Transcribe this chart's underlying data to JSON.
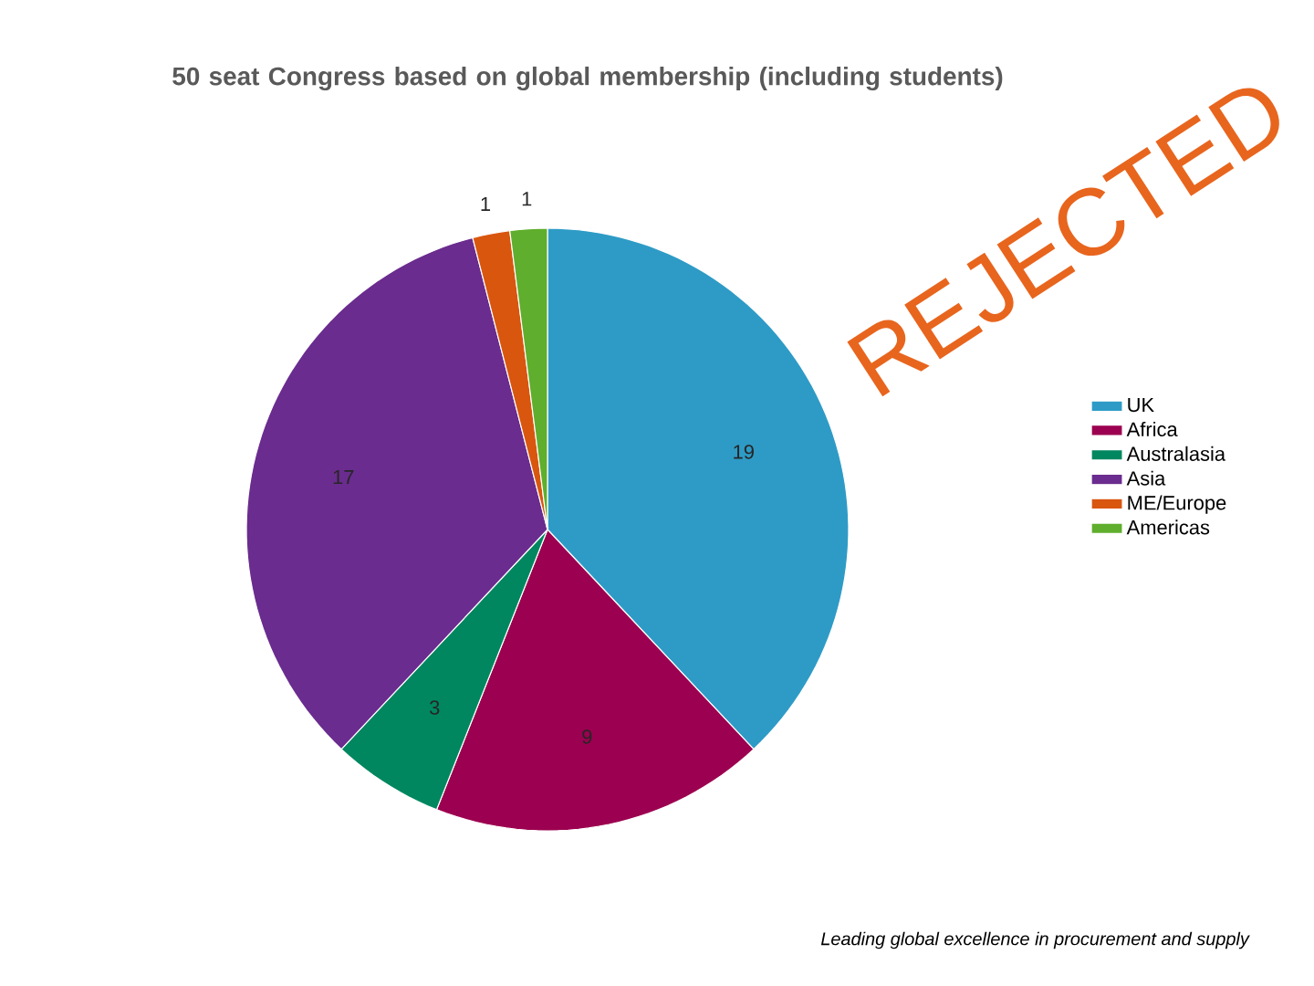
{
  "chart_data": {
    "type": "pie",
    "title": "50 seat Congress based on global membership (including students)",
    "categories": [
      "UK",
      "Africa",
      "Australasia",
      "Asia",
      "ME/Europe",
      "Americas"
    ],
    "values": [
      19,
      9,
      3,
      17,
      1,
      1
    ],
    "colors": [
      "#2e9bc6",
      "#9c0050",
      "#00875f",
      "#6a2c8e",
      "#d9560f",
      "#5fae2d"
    ],
    "data_labels": true,
    "legend": "right",
    "annotations": [
      "REJECTED",
      "Leading global excellence in procurement and supply"
    ]
  }
}
